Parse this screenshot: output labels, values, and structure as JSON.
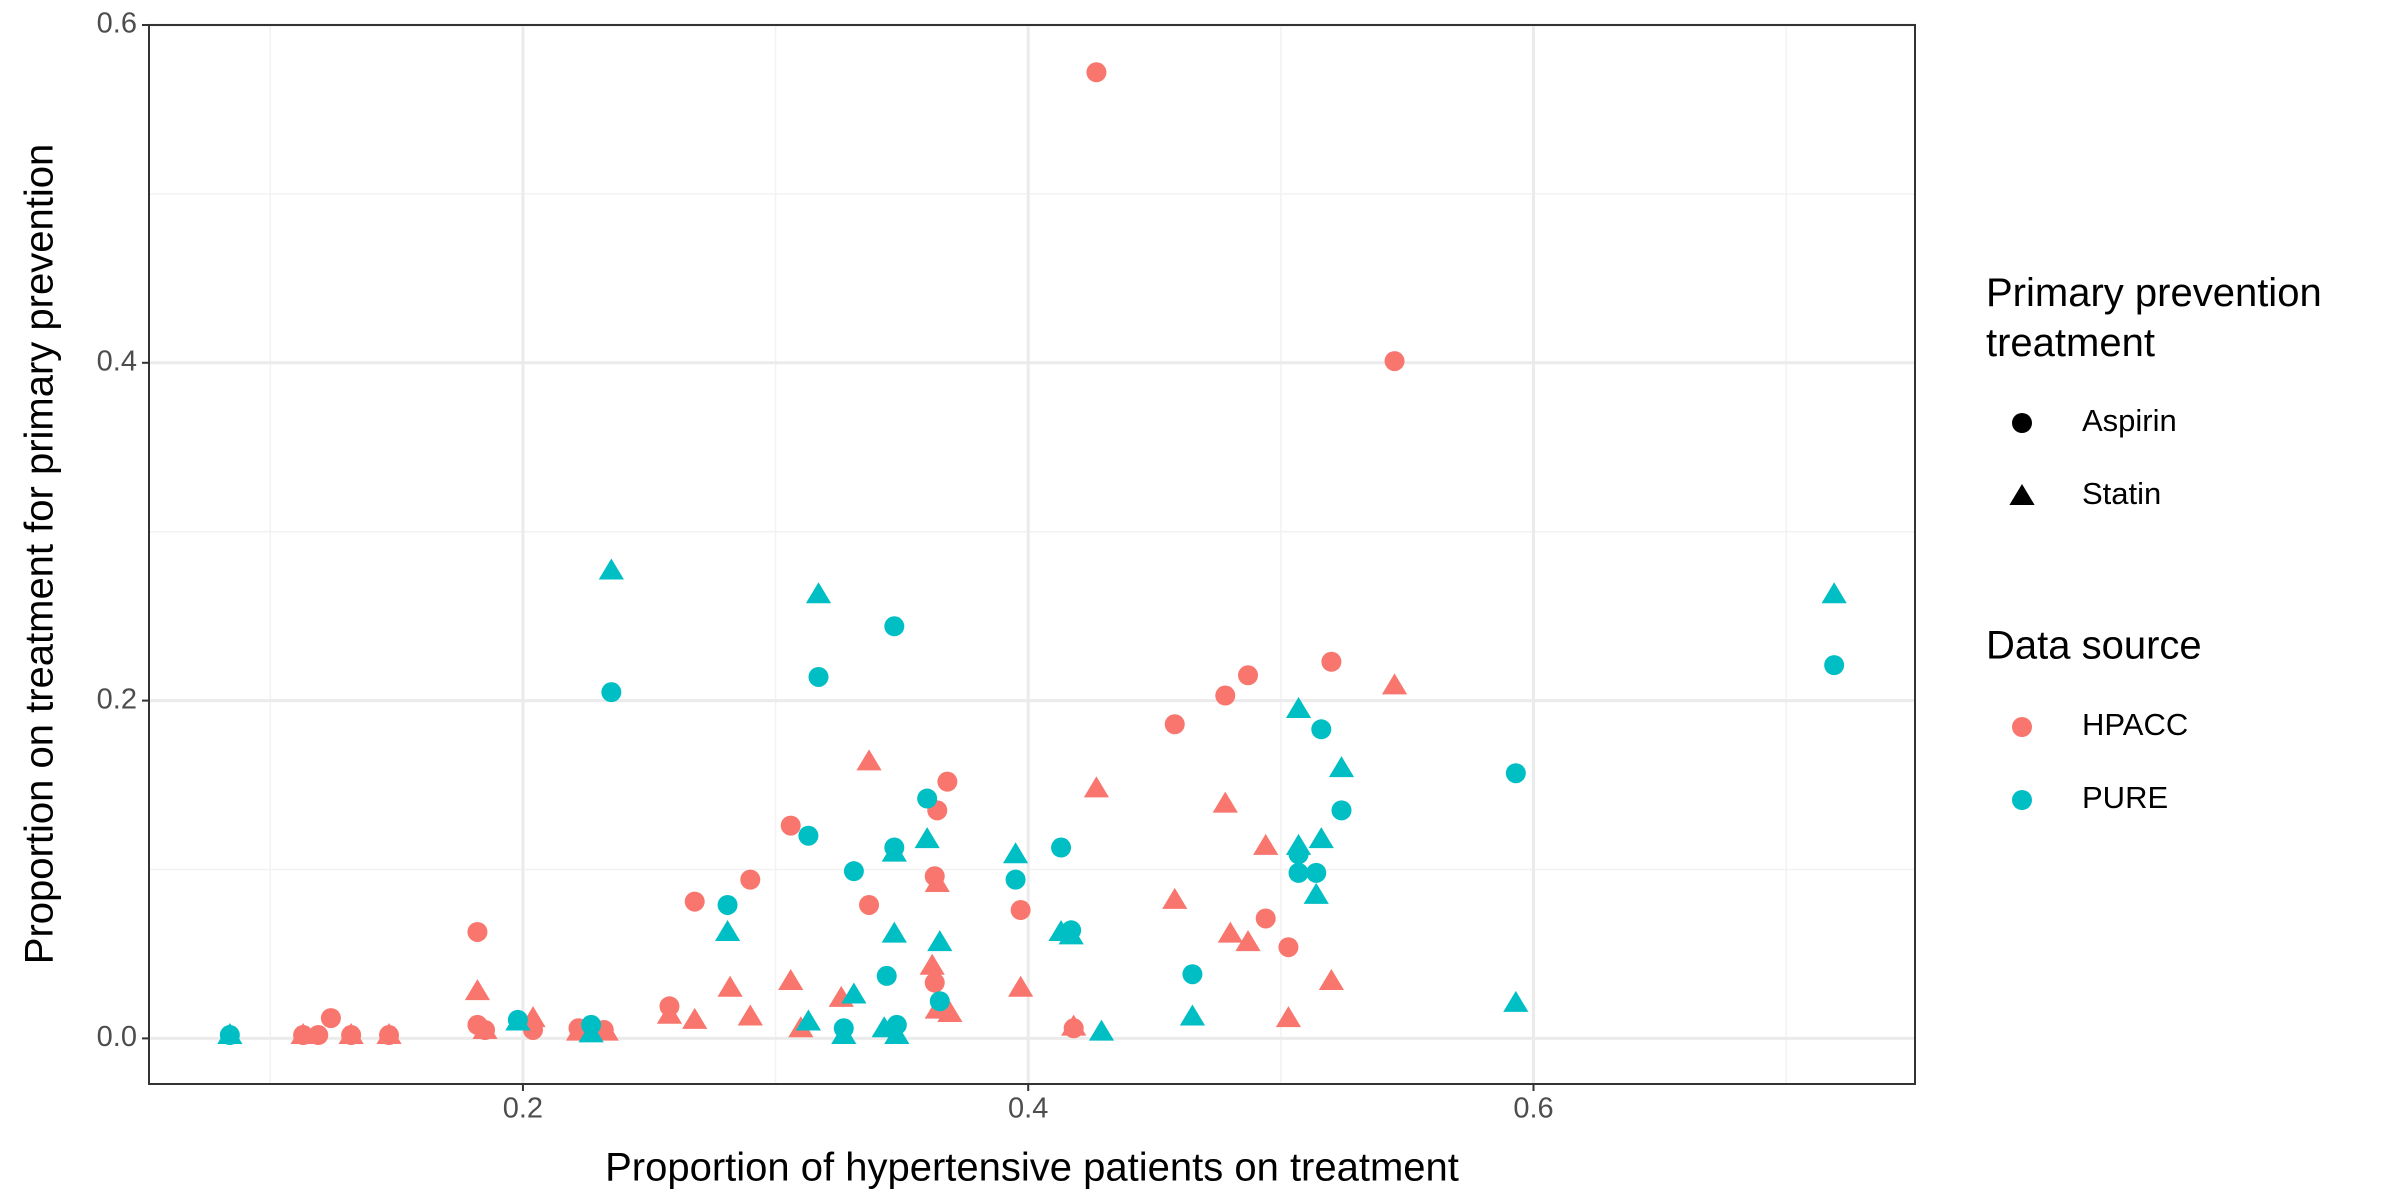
{
  "chart_data": {
    "type": "scatter",
    "x_label": "Proportion of hypertensive patients on treatment",
    "y_label": "Proportion on treatment for primary prevention",
    "xlim": [
      0.052,
      0.751
    ],
    "ylim": [
      -0.027,
      0.6
    ],
    "xticks": [
      0.2,
      0.4,
      0.6
    ],
    "yticks": [
      {
        "value": 0,
        "label": "0.0"
      },
      0.2,
      0.4,
      0.6
    ],
    "grid": true,
    "shape_legend": {
      "title": "Primary prevention treatment",
      "items": [
        {
          "label": "Aspirin",
          "shape": "circle"
        },
        {
          "label": "Statin",
          "shape": "triangle"
        }
      ]
    },
    "color_legend": {
      "title": "Data source",
      "items": [
        {
          "label": "HPACC",
          "color": "#F8766D"
        },
        {
          "label": "PURE",
          "color": "#00BFC4"
        }
      ]
    },
    "series": [
      {
        "color": "#F8766D",
        "shape": "circle",
        "x": [
          0.427,
          0.545,
          0.52,
          0.487,
          0.478,
          0.458,
          0.368,
          0.364,
          0.306,
          0.29,
          0.268,
          0.337,
          0.363,
          0.397,
          0.494,
          0.503,
          0.182,
          0.363,
          0.258,
          0.182,
          0.124,
          0.113,
          0.119,
          0.132,
          0.147,
          0.204,
          0.222,
          0.232,
          0.418,
          0.185
        ],
        "y": [
          0.572,
          0.401,
          0.223,
          0.215,
          0.203,
          0.186,
          0.152,
          0.135,
          0.126,
          0.094,
          0.081,
          0.079,
          0.096,
          0.076,
          0.071,
          0.054,
          0.063,
          0.033,
          0.019,
          0.008,
          0.012,
          0.002,
          0.002,
          0.002,
          0.002,
          0.005,
          0.006,
          0.005,
          0.006,
          0.005
        ]
      },
      {
        "color": "#F8766D",
        "shape": "triangle",
        "x": [
          0.545,
          0.337,
          0.427,
          0.478,
          0.494,
          0.458,
          0.48,
          0.487,
          0.364,
          0.52,
          0.503,
          0.397,
          0.306,
          0.282,
          0.326,
          0.362,
          0.364,
          0.369,
          0.29,
          0.268,
          0.258,
          0.31,
          0.182,
          0.204,
          0.222,
          0.233,
          0.418,
          0.185,
          0.113,
          0.132,
          0.147
        ],
        "y": [
          0.209,
          0.164,
          0.148,
          0.139,
          0.114,
          0.082,
          0.062,
          0.057,
          0.092,
          0.034,
          0.012,
          0.03,
          0.034,
          0.03,
          0.024,
          0.043,
          0.017,
          0.015,
          0.013,
          0.011,
          0.014,
          0.006,
          0.028,
          0.012,
          0.004,
          0.004,
          0.007,
          0.005,
          0.002,
          0.002,
          0.002
        ]
      },
      {
        "color": "#00BFC4",
        "shape": "circle",
        "x": [
          0.235,
          0.347,
          0.317,
          0.719,
          0.593,
          0.516,
          0.524,
          0.514,
          0.507,
          0.507,
          0.36,
          0.313,
          0.347,
          0.413,
          0.395,
          0.331,
          0.417,
          0.281,
          0.344,
          0.465,
          0.365,
          0.348,
          0.327,
          0.198,
          0.227,
          0.084
        ],
        "y": [
          0.205,
          0.244,
          0.214,
          0.221,
          0.157,
          0.183,
          0.135,
          0.098,
          0.098,
          0.109,
          0.142,
          0.12,
          0.113,
          0.113,
          0.094,
          0.099,
          0.064,
          0.079,
          0.037,
          0.038,
          0.022,
          0.008,
          0.006,
          0.011,
          0.008,
          0.002
        ]
      },
      {
        "color": "#00BFC4",
        "shape": "triangle",
        "x": [
          0.235,
          0.317,
          0.719,
          0.507,
          0.524,
          0.516,
          0.507,
          0.514,
          0.36,
          0.347,
          0.395,
          0.413,
          0.417,
          0.281,
          0.347,
          0.365,
          0.331,
          0.313,
          0.465,
          0.593,
          0.429,
          0.198,
          0.343,
          0.348,
          0.327,
          0.227,
          0.084
        ],
        "y": [
          0.277,
          0.263,
          0.263,
          0.195,
          0.16,
          0.118,
          0.114,
          0.085,
          0.118,
          0.11,
          0.109,
          0.063,
          0.061,
          0.063,
          0.062,
          0.057,
          0.026,
          0.01,
          0.013,
          0.021,
          0.004,
          0.01,
          0.006,
          0.002,
          0.002,
          0.003,
          0.002
        ]
      }
    ]
  }
}
